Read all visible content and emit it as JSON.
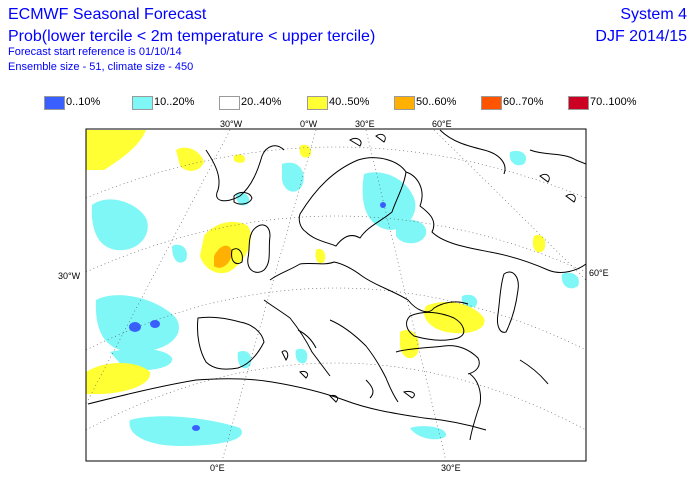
{
  "header": {
    "title": "ECMWF Seasonal Forecast",
    "subtitle": "Prob(lower tercile < 2m temperature < upper tercile)",
    "start_reference": "Forecast start reference is 01/10/14",
    "ensemble": "Ensemble size - 51, climate size - 450",
    "system": "System 4",
    "period": "DJF 2014/15"
  },
  "legend": [
    {
      "label": "0..10%",
      "color": "#3a5fff"
    },
    {
      "label": "10..20%",
      "color": "#7ff7f7"
    },
    {
      "label": "20..40%",
      "color": "#ffffff"
    },
    {
      "label": "40..50%",
      "color": "#ffff33"
    },
    {
      "label": "50..60%",
      "color": "#ffb000"
    },
    {
      "label": "60..70%",
      "color": "#ff5500"
    },
    {
      "label": "70..100%",
      "color": "#cc0022"
    }
  ],
  "map": {
    "graticule_labels": {
      "top": [
        "30°W",
        "0°W",
        "30°E",
        "60°E"
      ],
      "left": "30°W",
      "right": "60°E",
      "bottom": [
        "0°E",
        "30°E"
      ]
    }
  }
}
